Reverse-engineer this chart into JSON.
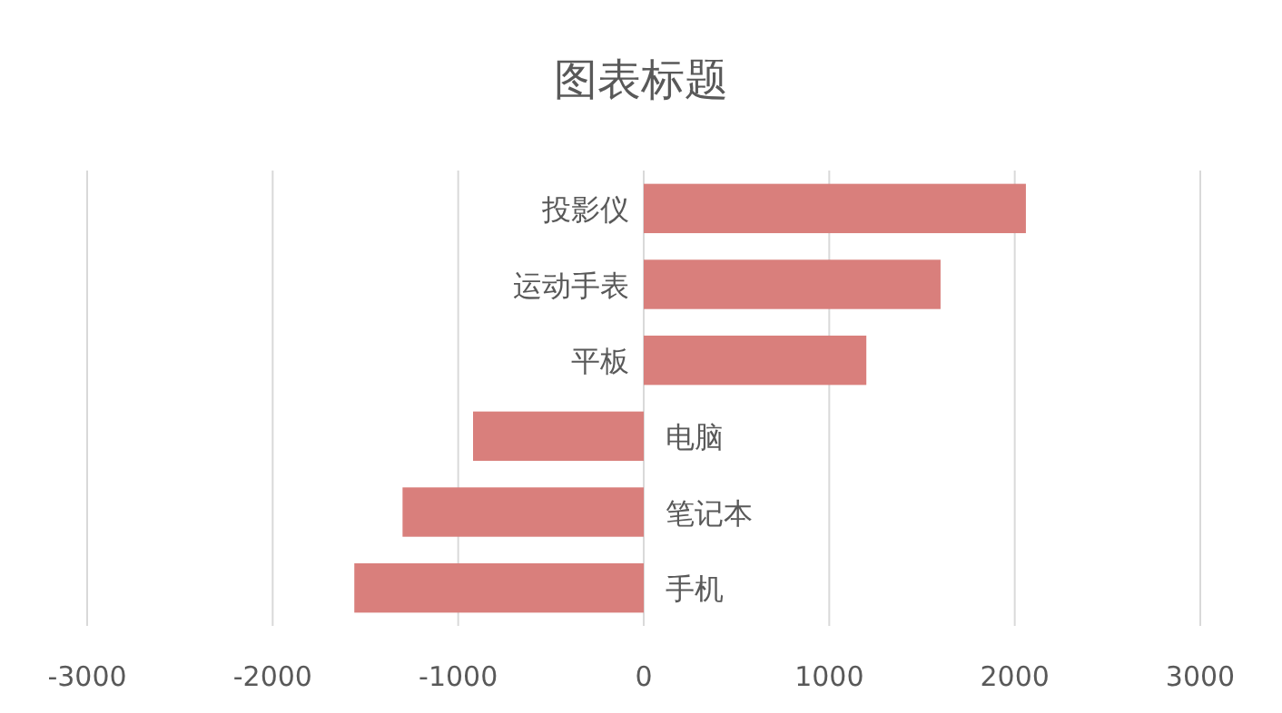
{
  "chart_data": {
    "type": "bar",
    "orientation": "horizontal",
    "title": "图表标题",
    "categories": [
      "投影仪",
      "运动手表",
      "平板",
      "电脑",
      "笔记本",
      "手机"
    ],
    "values": [
      2060,
      1600,
      1200,
      -920,
      -1300,
      -1560
    ],
    "color": "#d97f7c",
    "xlim": [
      -3000,
      3000
    ],
    "xticks": [
      -3000,
      -2000,
      -1000,
      0,
      1000,
      2000,
      3000
    ],
    "grid": "x"
  }
}
